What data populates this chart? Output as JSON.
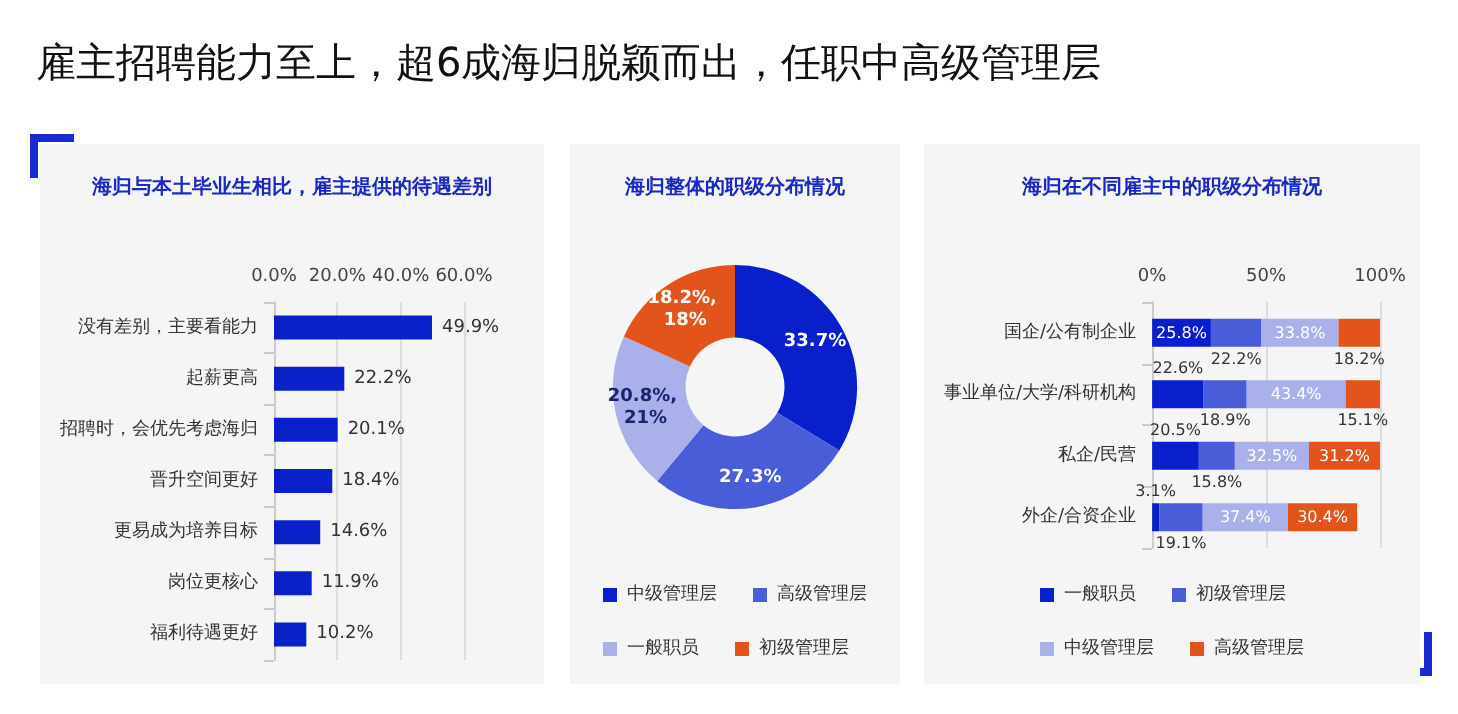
{
  "chart_data": [
    {
      "type": "other",
      "title": "雇主招聘能力至上，超6成海归脱颖而出，任职中高级管理层"
    },
    {
      "type": "bar",
      "title": "海归与本土毕业生相比，雇主提供的待遇差别",
      "orientation": "horizontal",
      "categories": [
        "没有差别，主要看能力",
        "起薪更高",
        "招聘时，会优先考虑海归",
        "晋升空间更好",
        "更易成为培养目标",
        "岗位更核心",
        "福利待遇更好"
      ],
      "values": [
        49.9,
        22.2,
        20.1,
        18.4,
        14.6,
        11.9,
        10.2
      ],
      "value_labels": [
        "49.9%",
        "22.2%",
        "20.1%",
        "18.4%",
        "14.6%",
        "11.9%",
        "10.2%"
      ],
      "color": "#0a20c8",
      "xlim": [
        0,
        60
      ],
      "xticks": [
        {
          "value": 0,
          "label": "0.0%"
        },
        {
          "value": 20,
          "label": "20.0%"
        },
        {
          "value": 40,
          "label": "40.0%"
        },
        {
          "value": 60,
          "label": "60.0%"
        }
      ],
      "grid": "x"
    },
    {
      "type": "donut",
      "title": "海归整体的职级分布情况",
      "categories": [
        "中级管理层",
        "高级管理层",
        "一般职员",
        "初级管理层"
      ],
      "values": [
        33.7,
        27.3,
        20.8,
        18.2
      ],
      "value_labels": [
        "33.7%",
        "27.3%",
        "20.8%, 21%",
        "18.2%, 18%"
      ],
      "colors": [
        "#0a1fcc",
        "#4a5dd8",
        "#aab1ea",
        "#e2541b"
      ],
      "legend": "bottom"
    },
    {
      "type": "bar",
      "title": "海归在不同雇主中的职级分布情况",
      "orientation": "horizontal",
      "stacked": true,
      "categories": [
        "国企/公有制企业",
        "事业单位/大学/科研机构",
        "私企/民营",
        "外企/合资企业"
      ],
      "series": [
        {
          "name": "一般职员",
          "color": "#0a1fcc",
          "values": [
            25.8,
            22.6,
            20.5,
            3.1
          ],
          "value_labels": [
            "25.8%",
            "22.6%",
            "20.5%",
            "3.1%"
          ]
        },
        {
          "name": "初级管理层",
          "color": "#4a5dd8",
          "values": [
            22.2,
            18.9,
            15.8,
            19.1
          ],
          "value_labels": [
            "22.2%",
            "18.9%",
            "15.8%",
            "19.1%"
          ]
        },
        {
          "name": "中级管理层",
          "color": "#aab1ea",
          "values": [
            33.8,
            43.4,
            32.5,
            37.4
          ],
          "value_labels": [
            "33.8%",
            "43.4%",
            "32.5%",
            "37.4%"
          ]
        },
        {
          "name": "高级管理层",
          "color": "#e2541b",
          "values": [
            18.2,
            15.1,
            31.2,
            30.4
          ],
          "value_labels": [
            "18.2%",
            "15.1%",
            "31.2%",
            "30.4%"
          ]
        }
      ],
      "xlim": [
        0,
        100
      ],
      "xticks": [
        {
          "value": 0,
          "label": "0%"
        },
        {
          "value": 50,
          "label": "50%"
        },
        {
          "value": 100,
          "label": "100%"
        }
      ],
      "grid": "x",
      "legend": "bottom"
    }
  ]
}
